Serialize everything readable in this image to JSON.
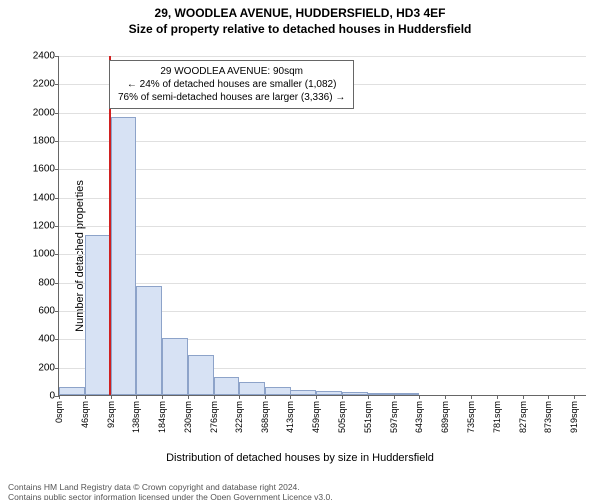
{
  "title_line1": "29, WOODLEA AVENUE, HUDDERSFIELD, HD3 4EF",
  "title_line2": "Size of property relative to detached houses in Huddersfield",
  "y_axis_label": "Number of detached properties",
  "x_axis_label": "Distribution of detached houses by size in Huddersfield",
  "chart": {
    "type": "histogram",
    "background_color": "#ffffff",
    "grid_color": "#e0e0e0",
    "axis_color": "#666666",
    "bar_fill": "#d7e2f4",
    "bar_border": "#8da3c9",
    "marker_color": "#d02020",
    "xlim": [
      0,
      942
    ],
    "ylim": [
      0,
      2400
    ],
    "y_ticks": [
      0,
      200,
      400,
      600,
      800,
      1000,
      1200,
      1400,
      1600,
      1800,
      2000,
      2200,
      2400
    ],
    "x_ticks": [
      0,
      46,
      92,
      138,
      184,
      230,
      276,
      322,
      368,
      413,
      459,
      505,
      551,
      597,
      643,
      689,
      735,
      781,
      827,
      873,
      919
    ],
    "x_tick_labels": [
      "0sqm",
      "46sqm",
      "92sqm",
      "138sqm",
      "184sqm",
      "230sqm",
      "276sqm",
      "322sqm",
      "368sqm",
      "413sqm",
      "459sqm",
      "505sqm",
      "551sqm",
      "597sqm",
      "643sqm",
      "689sqm",
      "735sqm",
      "781sqm",
      "827sqm",
      "873sqm",
      "919sqm"
    ],
    "bin_width": 46,
    "bin_lefts": [
      0,
      46,
      92,
      138,
      184,
      230,
      276,
      322,
      368,
      413,
      459,
      505,
      551,
      597,
      643,
      689,
      735,
      781,
      827,
      873,
      919
    ],
    "values": [
      60,
      1130,
      1960,
      770,
      400,
      280,
      130,
      95,
      55,
      35,
      30,
      20,
      6,
      4,
      0,
      0,
      0,
      0,
      0,
      0,
      0
    ],
    "marker_x": 90
  },
  "annotation": {
    "line1": "29 WOODLEA AVENUE: 90sqm",
    "line2": "← 24% of detached houses are smaller (1,082)",
    "line3": "76% of semi-detached houses are larger (3,336) →"
  },
  "footer": {
    "line1": "Contains HM Land Registry data © Crown copyright and database right 2024.",
    "line2": "Contains public sector information licensed under the Open Government Licence v3.0."
  }
}
